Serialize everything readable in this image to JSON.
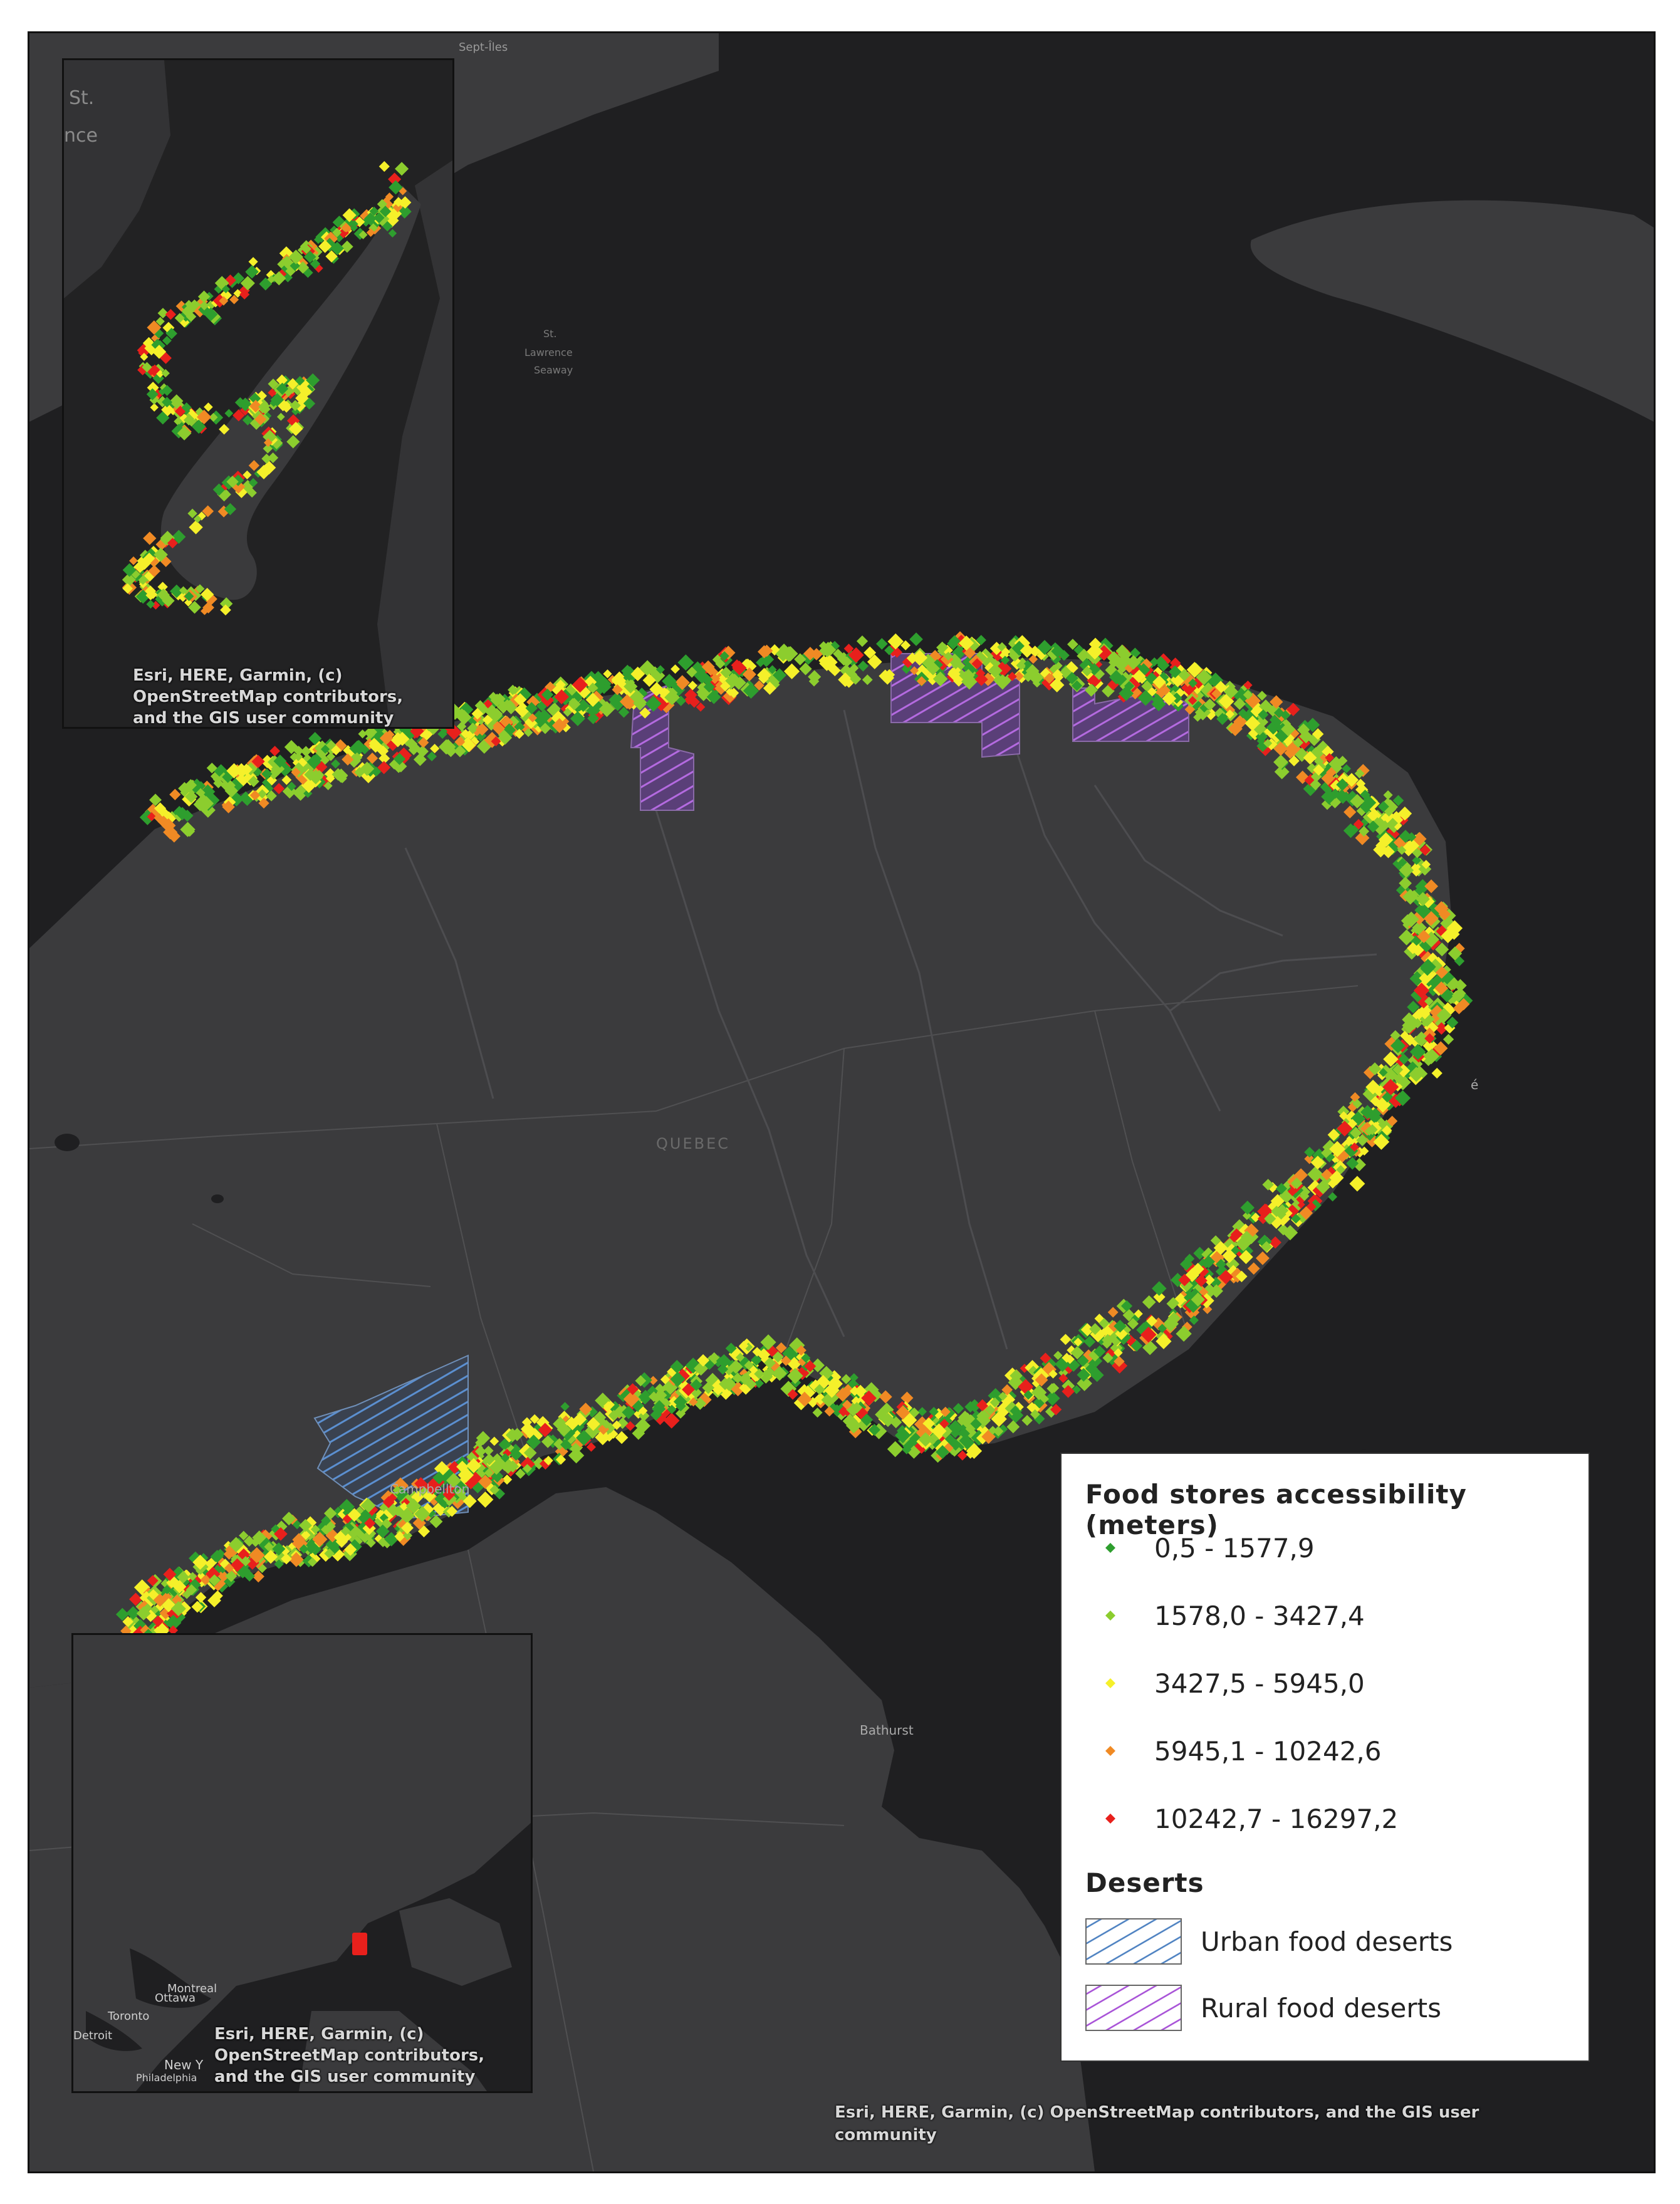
{
  "map": {
    "region_label": "QUEBEC",
    "place_labels": {
      "sept_iles": "Sept-Îles",
      "seaway": [
        "St.",
        "Lawrence",
        "Seaway"
      ],
      "campbellton": "Campbellton",
      "bathurst": "Bathurst",
      "gaspe": "é"
    },
    "attribution": [
      "Esri, HERE, Garmin, (c) OpenStreetMap contributors, and the GIS user",
      "community"
    ]
  },
  "inset_top": {
    "corner_text": [
      "St.",
      "nce"
    ],
    "attribution": [
      "Esri, HERE, Garmin, (c)",
      "OpenStreetMap contributors,",
      "and the GIS user community"
    ]
  },
  "inset_bottom": {
    "labels": {
      "montreal": "Montreal",
      "ottawa": "Ottawa",
      "toronto": "Toronto",
      "ny": "New Y",
      "philadelphia": "Philadelphia",
      "detroit": "Detroit"
    },
    "attribution": [
      "Esri, HERE, Garmin, (c)",
      "OpenStreetMap contributors,",
      "and the GIS user community"
    ]
  },
  "legend": {
    "title": "Food stores accessibility (meters)",
    "classes": [
      {
        "label": "0,5 - 1577,9",
        "color": "#2e9e2e"
      },
      {
        "label": "1578,0 - 3427,4",
        "color": "#8ccd2e"
      },
      {
        "label": "3427,5 - 5945,0",
        "color": "#f5f02a"
      },
      {
        "label": "5945,1 - 10242,6",
        "color": "#f08a24"
      },
      {
        "label": "10242,7 - 16297,2",
        "color": "#e8201c"
      }
    ],
    "deserts_title": "Deserts",
    "deserts": [
      {
        "label": "Urban food deserts",
        "color": "#4a7fc0"
      },
      {
        "label": "Rural food deserts",
        "color": "#a64ed6"
      }
    ]
  },
  "colors": {
    "water": "#1f1f21",
    "land": "#3b3b3d",
    "boundary": "#505052"
  }
}
